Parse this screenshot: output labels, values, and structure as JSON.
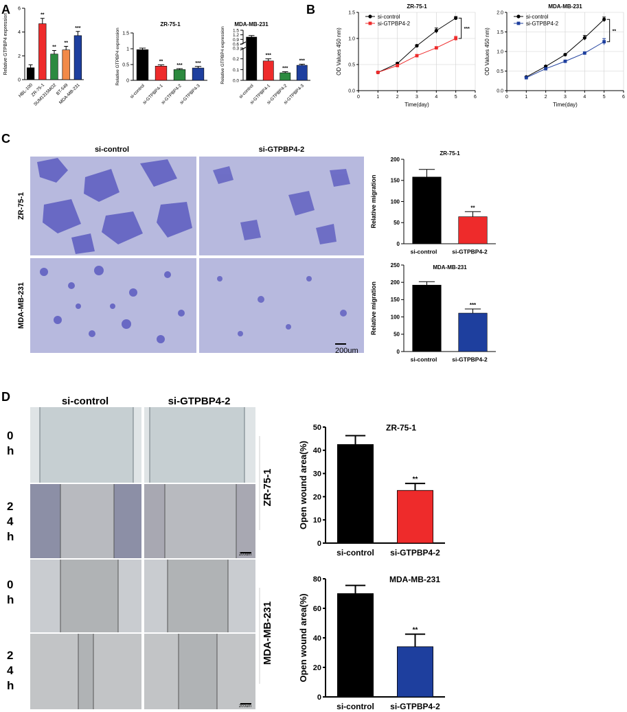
{
  "panel_letters": {
    "a": "A",
    "b": "B",
    "c": "C",
    "d": "D"
  },
  "panel_c": {
    "col_labels": [
      "si-control",
      "si-GTPBP4-2"
    ],
    "row_labels": [
      "ZR-75-1",
      "MDA-MB-231"
    ],
    "scale_bar": "200um"
  },
  "panel_d": {
    "col_labels": [
      "si-control",
      "si-GTPBP4-2"
    ],
    "time_labels": [
      [
        "0",
        "h"
      ],
      [
        "2",
        "4",
        "h"
      ],
      [
        "0",
        "h"
      ],
      [
        "2",
        "4",
        "h"
      ]
    ],
    "cell_labels": [
      "ZR-75-1",
      "MDA-MB-231"
    ],
    "scale_bar": "200um"
  },
  "colors": {
    "black": "#000000",
    "red": "#ee2b2b",
    "green": "#2c8a3f",
    "orange": "#f28a49",
    "blue": "#1e3f9e",
    "crystal_violet": "#5c5cc0",
    "grid_line": "#cfcfcf"
  },
  "chart_data": [
    {
      "id": "A1",
      "type": "bar",
      "title": "",
      "ylabel": "Relative GTPBP4 expression",
      "ylim": [
        0,
        6
      ],
      "yticks": [
        0,
        2,
        4,
        6
      ],
      "categories": [
        "HBL-100",
        "ZR-75-1",
        "SUM1315MO2",
        "BT-549",
        "MDA-MB-231"
      ],
      "values": [
        1.0,
        4.7,
        2.15,
        2.5,
        3.7
      ],
      "errors": [
        0.25,
        0.45,
        0.3,
        0.3,
        0.35
      ],
      "colors": [
        "#000000",
        "#ee2b2b",
        "#2c8a3f",
        "#f28a49",
        "#1e3f9e"
      ],
      "significance": [
        "",
        "**",
        "**",
        "**",
        "***"
      ]
    },
    {
      "id": "A2",
      "type": "bar",
      "title": "ZR-75-1",
      "ylabel": "Relative GTPBP4 expression",
      "ylim": [
        0,
        1.5
      ],
      "yticks": [
        0.0,
        0.5,
        1.0,
        1.5
      ],
      "categories": [
        "si-control",
        "si-GTPBP4-1",
        "si-GTPBP4-2",
        "si-GTPBP4-3"
      ],
      "values": [
        0.97,
        0.45,
        0.34,
        0.39
      ],
      "errors": [
        0.05,
        0.04,
        0.03,
        0.05
      ],
      "colors": [
        "#000000",
        "#ee2b2b",
        "#2c8a3f",
        "#1e3f9e"
      ],
      "significance": [
        "",
        "**",
        "***",
        "***"
      ]
    },
    {
      "id": "A3",
      "type": "bar",
      "title": "MDA-MB-231",
      "ylabel": "Relative GTPBP4 expression",
      "ylim": [
        0,
        1.5
      ],
      "yticks": [
        0.0,
        0.1,
        0.2,
        0.3,
        0.6,
        0.9,
        1.2,
        1.5
      ],
      "axis_break": [
        0.3,
        0.6
      ],
      "categories": [
        "si-control",
        "si-GTPBP4-1",
        "si-GTPBP4-2",
        "si-GTPBP4-3"
      ],
      "values": [
        1.05,
        0.18,
        0.07,
        0.14
      ],
      "errors": [
        0.1,
        0.02,
        0.01,
        0.01
      ],
      "colors": [
        "#000000",
        "#ee2b2b",
        "#2c8a3f",
        "#1e3f9e"
      ],
      "significance": [
        "",
        "***",
        "***",
        "***"
      ]
    },
    {
      "id": "B1",
      "type": "line",
      "title": "ZR-75-1",
      "xlabel": "Time(day)",
      "ylabel": "OD Values 450 nm)",
      "xlim": [
        0,
        6
      ],
      "ylim": [
        0,
        1.5
      ],
      "xticks": [
        0,
        1,
        2,
        3,
        4,
        5,
        6
      ],
      "yticks": [
        0.0,
        0.5,
        1.0,
        1.5
      ],
      "legend_position": "top-left",
      "significance": "***",
      "series": [
        {
          "name": "si-control",
          "color": "#000000",
          "marker": "circle",
          "x": [
            1,
            2,
            3,
            4,
            5
          ],
          "y": [
            0.35,
            0.52,
            0.86,
            1.15,
            1.39
          ],
          "err": [
            0.01,
            0.02,
            0.02,
            0.05,
            0.03
          ]
        },
        {
          "name": "si-GTPBP4-2",
          "color": "#ee2b2b",
          "marker": "square",
          "x": [
            1,
            2,
            3,
            4,
            5
          ],
          "y": [
            0.35,
            0.48,
            0.67,
            0.82,
            1.0
          ],
          "err": [
            0.01,
            0.02,
            0.02,
            0.02,
            0.04
          ]
        }
      ]
    },
    {
      "id": "B2",
      "type": "line",
      "title": "MDA-MB-231",
      "xlabel": "Time(day)",
      "ylabel": "OD Values 450 nm)",
      "xlim": [
        0,
        6
      ],
      "ylim": [
        0,
        2.0
      ],
      "xticks": [
        0,
        1,
        2,
        3,
        4,
        5,
        6
      ],
      "yticks": [
        0.0,
        0.5,
        1.0,
        1.5,
        2.0
      ],
      "legend_position": "top-left",
      "significance": "**",
      "series": [
        {
          "name": "si-control",
          "color": "#000000",
          "marker": "circle",
          "x": [
            1,
            2,
            3,
            4,
            5
          ],
          "y": [
            0.35,
            0.62,
            0.92,
            1.35,
            1.82
          ],
          "err": [
            0.01,
            0.02,
            0.02,
            0.06,
            0.06
          ]
        },
        {
          "name": "si-GTPBP4-2",
          "color": "#1e3f9e",
          "marker": "square",
          "x": [
            1,
            2,
            3,
            4,
            5
          ],
          "y": [
            0.33,
            0.56,
            0.75,
            0.96,
            1.25
          ],
          "err": [
            0.01,
            0.02,
            0.02,
            0.02,
            0.08
          ]
        }
      ]
    },
    {
      "id": "C1",
      "type": "bar",
      "title": "ZR-75-1",
      "ylabel": "Relative migration",
      "ylim": [
        0,
        200
      ],
      "yticks": [
        0,
        50,
        100,
        150,
        200
      ],
      "categories": [
        "si-control",
        "si-GTPBP4-2"
      ],
      "values": [
        158,
        64
      ],
      "errors": [
        18,
        12
      ],
      "colors": [
        "#000000",
        "#ee2b2b"
      ],
      "significance": [
        "",
        "**"
      ]
    },
    {
      "id": "C2",
      "type": "bar",
      "title": "MDA-MB-231",
      "ylabel": "Relative migration",
      "ylim": [
        0,
        250
      ],
      "yticks": [
        0,
        50,
        100,
        150,
        200,
        250
      ],
      "categories": [
        "si-control",
        "si-GTPBP4-2"
      ],
      "values": [
        192,
        111
      ],
      "errors": [
        10,
        12
      ],
      "colors": [
        "#000000",
        "#1e3f9e"
      ],
      "significance": [
        "",
        "***"
      ]
    },
    {
      "id": "D1",
      "type": "bar",
      "title": "ZR-75-1",
      "ylabel": "Open wound area(%)",
      "ylim": [
        0,
        50
      ],
      "yticks": [
        0,
        10,
        20,
        30,
        40,
        50
      ],
      "categories": [
        "si-control",
        "si-GTPBP4-2"
      ],
      "values": [
        42.5,
        22.7
      ],
      "errors": [
        3.8,
        3.0
      ],
      "colors": [
        "#000000",
        "#ee2b2b"
      ],
      "significance": [
        "",
        "**"
      ]
    },
    {
      "id": "D2",
      "type": "bar",
      "title": "MDA-MB-231",
      "ylabel": "Open wound area(%)",
      "ylim": [
        0,
        80
      ],
      "yticks": [
        0,
        20,
        40,
        60,
        80
      ],
      "categories": [
        "si-control",
        "si-GTPBP4-2"
      ],
      "values": [
        70,
        34
      ],
      "errors": [
        5.5,
        8.5
      ],
      "colors": [
        "#000000",
        "#1e3f9e"
      ],
      "significance": [
        "",
        "**"
      ]
    }
  ]
}
